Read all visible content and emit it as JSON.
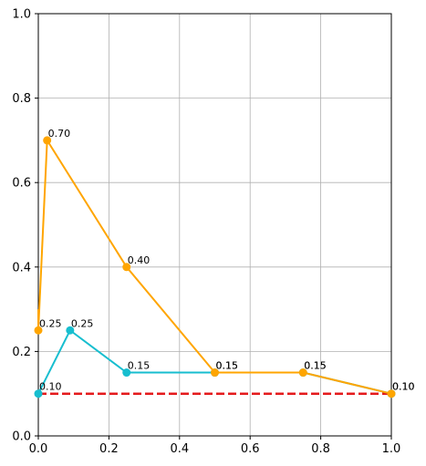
{
  "chart_data": {
    "type": "line",
    "title": "",
    "xlabel": "",
    "ylabel": "",
    "xlim": [
      0,
      1
    ],
    "ylim": [
      0,
      1
    ],
    "xticks": [
      0,
      0.2,
      0.4,
      0.6,
      0.8,
      1.0
    ],
    "xtick_labels": [
      "0.0",
      "0.2",
      "0.4",
      "0.6",
      "0.8",
      "1.0"
    ],
    "yticks": [
      0,
      0.2,
      0.4,
      0.6,
      0.8,
      1.0
    ],
    "ytick_labels": [
      "0.0",
      "0.2",
      "0.4",
      "0.6",
      "0.8",
      "1.0"
    ],
    "grid": true,
    "legend": false,
    "reference_line": {
      "y": 0.1,
      "color": "#e41a1c",
      "style": "dashed"
    },
    "series": [
      {
        "color": "#17becf",
        "x": [
          0.0,
          0.09,
          0.25,
          0.5,
          0.75,
          1.0
        ],
        "y": [
          0.1,
          0.25,
          0.15,
          0.15,
          0.15,
          0.1
        ],
        "labels": [
          "0.10",
          "0.25",
          "0.15",
          "0.15",
          "0.15",
          "0.10"
        ]
      },
      {
        "color": "#ffa500",
        "x": [
          0.0,
          0.0,
          0.025,
          0.25,
          0.5,
          0.75,
          1.0
        ],
        "y": [
          0.3,
          0.25,
          0.7,
          0.4,
          0.15,
          0.15,
          0.1
        ],
        "labels": [
          "",
          "0.25",
          "0.70",
          "0.40",
          "0.15",
          "0.15",
          "0.10"
        ]
      }
    ]
  }
}
